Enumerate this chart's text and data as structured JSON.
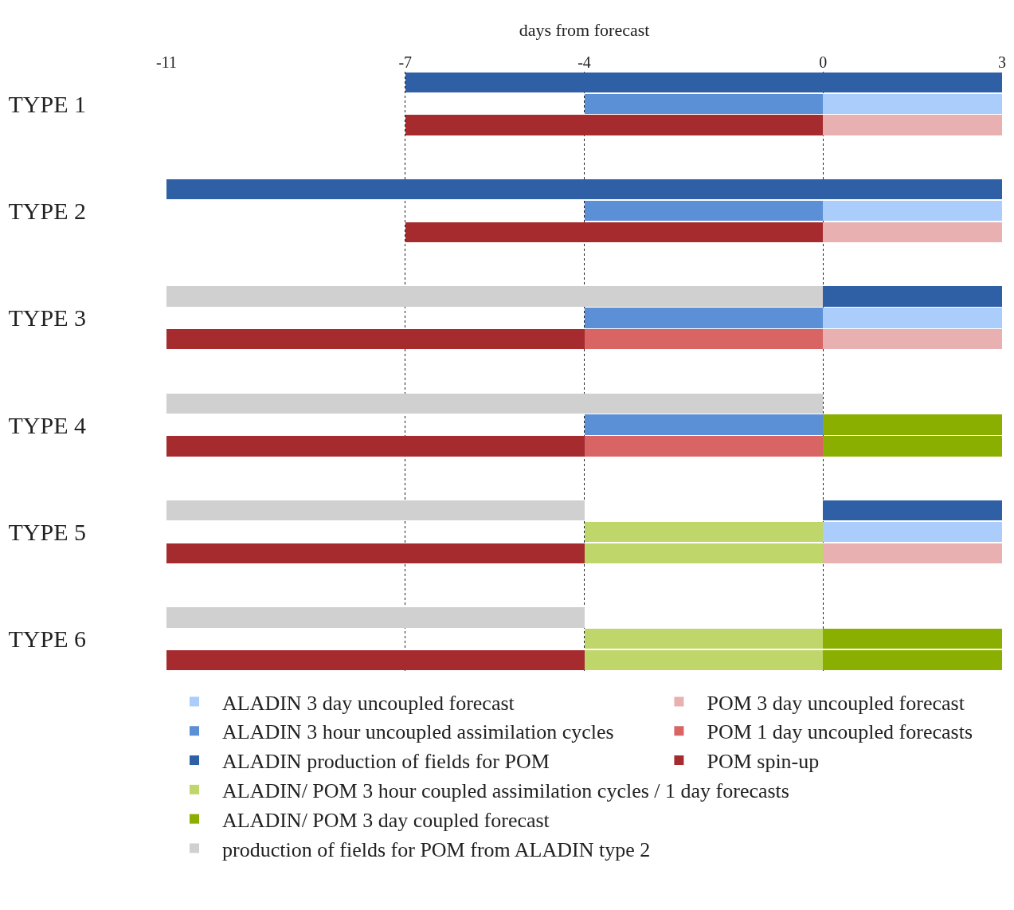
{
  "chart_data": {
    "type": "bar",
    "orientation": "horizontal",
    "xlabel": "days from forecast",
    "categories": [
      null,
      "TYPE 1",
      null,
      null,
      null,
      null,
      "TYPE 2",
      null,
      null,
      null,
      null,
      "TYPE 3",
      null,
      null,
      null,
      null,
      "TYPE 4",
      null,
      null,
      null,
      null,
      "TYPE 5",
      null,
      null,
      null,
      null,
      "TYPE 6",
      null
    ],
    "xlim": [
      -11,
      3
    ],
    "xticks": [
      -11,
      -7,
      -4,
      0,
      3
    ],
    "grid": "x",
    "legend": "bottom",
    "series": [
      {
        "name": "ALADIN 3 day uncoupled forecast",
        "color": "#aacdfb",
        "values": [
          null,
          3,
          null,
          null,
          null,
          null,
          3,
          null,
          null,
          null,
          null,
          3,
          null,
          null,
          null,
          null,
          null,
          null,
          null,
          null,
          null,
          3,
          null,
          null,
          null,
          null,
          null,
          null
        ],
        "base": [
          null,
          0,
          null,
          null,
          null,
          null,
          0,
          null,
          null,
          null,
          null,
          0,
          null,
          null,
          null,
          null,
          null,
          null,
          null,
          null,
          null,
          0,
          null,
          null,
          null,
          null,
          null,
          null
        ]
      },
      {
        "name": "ALADIN 3 hour uncoupled assimilation cycles",
        "color": "#5b8fd6",
        "values": [
          null,
          4,
          null,
          null,
          null,
          null,
          4,
          null,
          null,
          null,
          null,
          4,
          null,
          null,
          null,
          null,
          4,
          null,
          null,
          null,
          null,
          null,
          null,
          null,
          null,
          null,
          null,
          null
        ],
        "base": [
          null,
          -4,
          null,
          null,
          null,
          null,
          -4,
          null,
          null,
          null,
          null,
          -4,
          null,
          null,
          null,
          null,
          -4,
          null,
          null,
          null,
          null,
          null,
          null,
          null,
          null,
          null,
          null,
          null
        ]
      },
      {
        "name": "ALADIN production of fields for POM",
        "color": "#2f5fa5",
        "values": [
          10,
          null,
          null,
          null,
          null,
          14,
          null,
          null,
          null,
          null,
          3,
          null,
          null,
          null,
          null,
          null,
          null,
          null,
          null,
          null,
          3,
          null,
          null,
          null,
          null,
          null,
          null,
          null
        ],
        "base": [
          -7,
          null,
          null,
          null,
          null,
          -11,
          null,
          null,
          null,
          null,
          0,
          null,
          null,
          null,
          null,
          null,
          null,
          null,
          null,
          null,
          0,
          null,
          null,
          null,
          null,
          null,
          null,
          null
        ]
      },
      {
        "name": "ALADIN/ POM 3 hour coupled assimilation cycles / 1 day forecasts",
        "color": "#bfd66a",
        "values": [
          null,
          null,
          null,
          null,
          null,
          null,
          null,
          null,
          null,
          null,
          null,
          null,
          null,
          null,
          null,
          null,
          null,
          null,
          null,
          null,
          null,
          4,
          4,
          null,
          null,
          null,
          4,
          4
        ],
        "base": [
          null,
          null,
          null,
          null,
          null,
          null,
          null,
          null,
          null,
          null,
          null,
          null,
          null,
          null,
          null,
          null,
          null,
          null,
          null,
          null,
          null,
          -4,
          -4,
          null,
          null,
          null,
          -4,
          -4
        ]
      },
      {
        "name": "ALADIN/ POM 3 day coupled forecast",
        "color": "#8aaf00",
        "values": [
          null,
          null,
          null,
          null,
          null,
          null,
          null,
          null,
          null,
          null,
          null,
          null,
          null,
          null,
          null,
          null,
          3,
          3,
          null,
          null,
          null,
          null,
          null,
          null,
          null,
          null,
          3,
          3
        ],
        "base": [
          null,
          null,
          null,
          null,
          null,
          null,
          null,
          null,
          null,
          null,
          null,
          null,
          null,
          null,
          null,
          null,
          0,
          0,
          null,
          null,
          null,
          null,
          null,
          null,
          null,
          null,
          0,
          0
        ]
      },
      {
        "name": "production of fields for POM from ALADIN type 2",
        "color": "#d0d0d0",
        "values": [
          null,
          null,
          null,
          null,
          null,
          null,
          null,
          null,
          null,
          null,
          11,
          null,
          null,
          null,
          null,
          11,
          null,
          null,
          null,
          null,
          7,
          null,
          null,
          null,
          null,
          7,
          null,
          null
        ],
        "base": [
          null,
          null,
          null,
          null,
          null,
          null,
          null,
          null,
          null,
          null,
          -11,
          null,
          null,
          null,
          null,
          -11,
          null,
          null,
          null,
          null,
          -11,
          null,
          null,
          null,
          null,
          -11,
          null,
          null
        ]
      },
      {
        "name": "POM 3 day uncoupled forecast",
        "color": "#e8b0b0",
        "values": [
          null,
          null,
          3,
          null,
          null,
          null,
          null,
          3,
          null,
          null,
          null,
          null,
          3,
          null,
          null,
          null,
          null,
          null,
          null,
          null,
          null,
          null,
          3,
          null,
          null,
          null,
          null,
          null
        ],
        "base": [
          null,
          null,
          0,
          null,
          null,
          null,
          null,
          0,
          null,
          null,
          null,
          null,
          0,
          null,
          null,
          null,
          null,
          null,
          null,
          null,
          null,
          null,
          0,
          null,
          null,
          null,
          null,
          null
        ]
      },
      {
        "name": "POM 1 day uncoupled forecasts",
        "color": "#d96464",
        "values": [
          null,
          null,
          null,
          null,
          null,
          null,
          null,
          null,
          null,
          null,
          null,
          null,
          4,
          null,
          null,
          null,
          null,
          4,
          null,
          null,
          null,
          null,
          null,
          null,
          null,
          null,
          null,
          null
        ],
        "base": [
          null,
          null,
          null,
          null,
          null,
          null,
          null,
          null,
          null,
          null,
          null,
          null,
          -4,
          null,
          null,
          null,
          null,
          -4,
          null,
          null,
          null,
          null,
          null,
          null,
          null,
          null,
          null,
          null
        ]
      },
      {
        "name": "POM spin-up",
        "color": "#a52b2f",
        "values": [
          null,
          null,
          7,
          null,
          null,
          null,
          null,
          7,
          null,
          null,
          null,
          null,
          7,
          null,
          null,
          null,
          null,
          7,
          null,
          null,
          null,
          null,
          7,
          null,
          null,
          null,
          null,
          7
        ],
        "base": [
          null,
          null,
          -7,
          null,
          null,
          null,
          null,
          -7,
          null,
          null,
          null,
          null,
          -11,
          null,
          null,
          null,
          null,
          -11,
          null,
          null,
          null,
          null,
          -11,
          null,
          null,
          null,
          null,
          -11
        ]
      }
    ]
  }
}
